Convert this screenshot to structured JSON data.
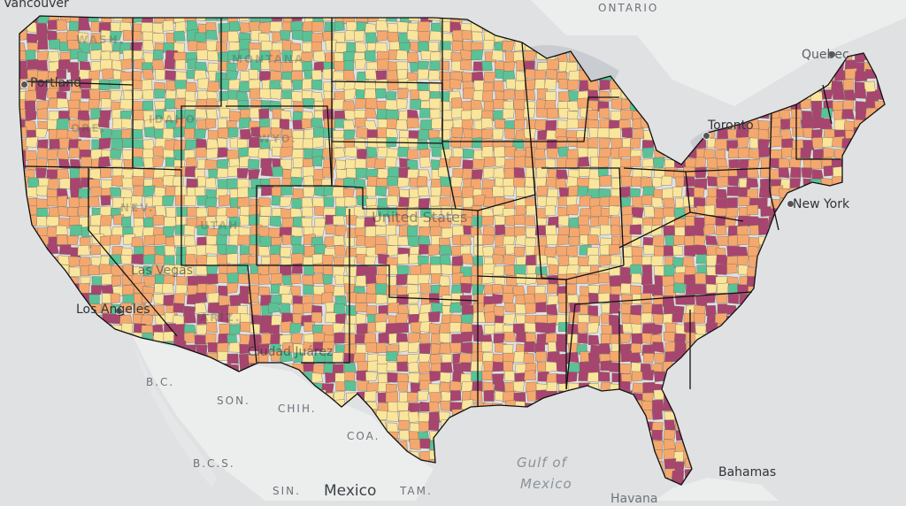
{
  "colors": {
    "background": "#dfe1e3",
    "land": "#eceeee",
    "water_stroke": "#ffffff",
    "border": "#111111",
    "palette": [
      "#f9e59b",
      "#f4a86e",
      "#a8446f",
      "#59c296"
    ]
  },
  "labels": {
    "ontario": "ONTARIO",
    "quebec": "Quebec",
    "vancouver": "Vancouver",
    "portland": "Portland",
    "toronto": "Toronto",
    "new_york": "New York",
    "los_angeles": "Los Angeles",
    "las_vegas": "Las Vegas",
    "ciudad_juarez": "Ciudad Juárez",
    "united_states": "United States",
    "bc": "B.C.",
    "son": "SON.",
    "chih": "CHIH.",
    "coa": "COA.",
    "bcs": "B.C.S.",
    "sin": "SIN.",
    "tam": "TAM.",
    "mexico": "Mexico",
    "gulf_line1": "Gulf of",
    "gulf_line2": "Mexico",
    "bahamas": "Bahamas",
    "havana": "Havana"
  },
  "state_ghosts": [
    "WASH.",
    "ORE.",
    "IDAHO",
    "MONTANA",
    "WYO.",
    "NEV.",
    "UTAH",
    "ARIZ."
  ]
}
